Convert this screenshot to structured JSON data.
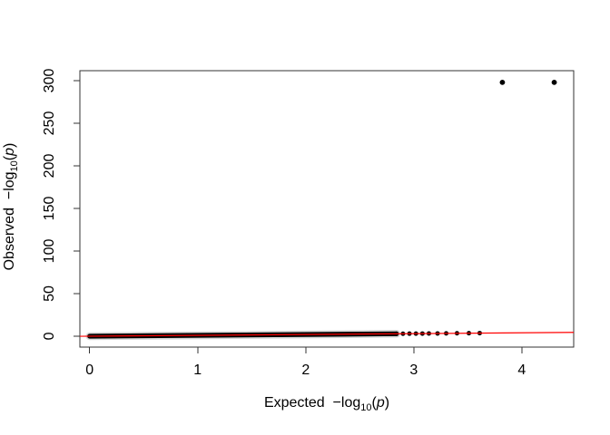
{
  "figure": {
    "background": "#ffffff",
    "description": "Base-graphics quantile–quantile plot of p-values with identity reference line"
  },
  "chart_data": {
    "type": "scatter",
    "title": "",
    "xlabel": "Expected −log10(p)",
    "ylabel": "Observed −log10(p)",
    "xlabel_parts": {
      "prefix": "Expected  −log",
      "sub": "10",
      "open": "(",
      "var": "p",
      "close": ")"
    },
    "ylabel_parts": {
      "prefix": "Observed  −log",
      "sub": "10",
      "open": "(",
      "var": "p",
      "close": ")"
    },
    "xlim": [
      -0.09,
      4.48
    ],
    "ylim": [
      -12.8,
      311.7
    ],
    "x_ticks": [
      0,
      1,
      2,
      3,
      4
    ],
    "y_ticks": [
      0,
      50,
      100,
      150,
      200,
      250,
      300
    ],
    "grid": false,
    "legend": "none",
    "axis_color": "#333333",
    "text_color": "#000000",
    "point_color": "#000000",
    "reference_line": {
      "type": "identity",
      "equation": "y = x",
      "color": "#ff0000"
    },
    "series": [
      {
        "name": "qq-band",
        "description": "thousands of overplotted points lying on y ≈ x, forming a solid black band just above zero",
        "x_start": 0,
        "x_end": 2.84,
        "y_rule": "y = x"
      },
      {
        "name": "qq-tail",
        "description": "individually distinguishable points continuing along y ≈ x",
        "points": [
          [
            2.84,
            2.84
          ],
          [
            2.9,
            2.9
          ],
          [
            2.96,
            2.96
          ],
          [
            3.02,
            3.02
          ],
          [
            3.08,
            3.08
          ],
          [
            3.14,
            3.14
          ],
          [
            3.22,
            3.22
          ],
          [
            3.3,
            3.3
          ],
          [
            3.4,
            3.4
          ],
          [
            3.51,
            3.51
          ],
          [
            3.61,
            3.61
          ]
        ]
      },
      {
        "name": "qq-outliers",
        "description": "two extreme points at observed ≈ 298",
        "points": [
          [
            3.82,
            298
          ],
          [
            4.3,
            298
          ]
        ]
      }
    ]
  }
}
